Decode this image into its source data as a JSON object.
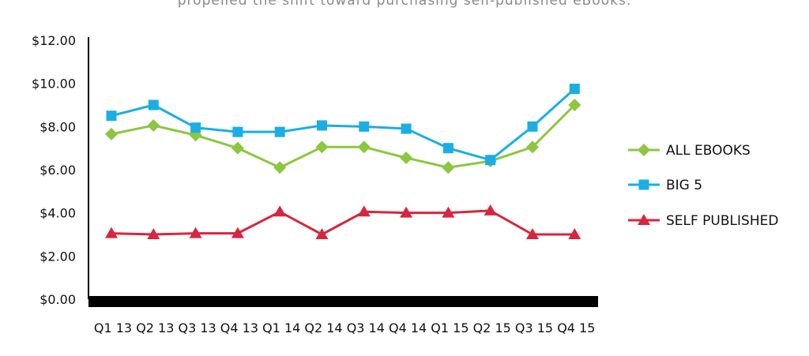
{
  "caption": "propelled the shift toward purchasing self-published eBooks.",
  "chart_data": {
    "type": "line",
    "title": "",
    "xlabel": "",
    "ylabel": "",
    "categories": [
      "Q1 13",
      "Q2 13",
      "Q3 13",
      "Q4 13",
      "Q1 14",
      "Q2 14",
      "Q3 14",
      "Q4 14",
      "Q1 15",
      "Q2 15",
      "Q3 15",
      "Q4 15"
    ],
    "y_ticks": [
      "$0.00",
      "$2.00",
      "$4.00",
      "$6.00",
      "$8.00",
      "$10.00",
      "$12.00"
    ],
    "ylim": [
      0,
      12
    ],
    "grid": false,
    "legend_position": "right",
    "series": [
      {
        "name": "ALL EBOOKS",
        "color": "#8DC63F",
        "marker": "diamond",
        "values": [
          7.65,
          8.05,
          7.6,
          7.0,
          6.1,
          7.05,
          7.05,
          6.55,
          6.1,
          6.4,
          7.05,
          9.0
        ]
      },
      {
        "name": "BIG 5",
        "color": "#1AAEE5",
        "marker": "square",
        "values": [
          8.5,
          9.0,
          7.95,
          7.75,
          7.75,
          8.05,
          8.0,
          7.9,
          7.0,
          6.45,
          8.0,
          9.75
        ]
      },
      {
        "name": "SELF PUBLISHED",
        "color": "#D7263D",
        "marker": "triangle",
        "values": [
          3.05,
          3.0,
          3.05,
          3.05,
          4.05,
          3.0,
          4.05,
          4.0,
          4.0,
          4.1,
          3.0,
          3.0
        ]
      }
    ]
  }
}
